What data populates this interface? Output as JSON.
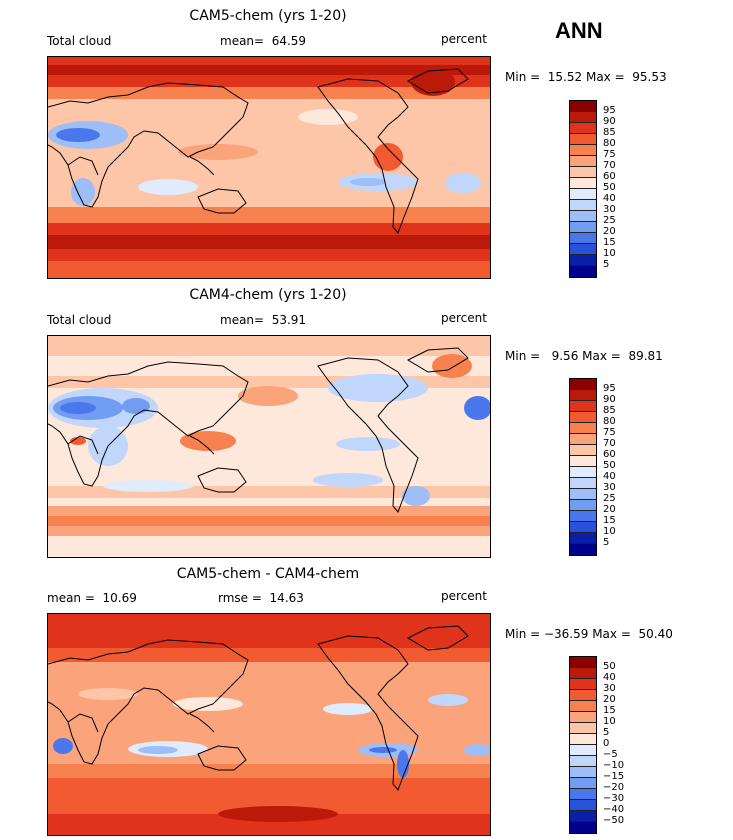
{
  "season": "ANN",
  "panels": [
    {
      "title": "CAM5-chem (yrs 1-20)",
      "left_label": "Total cloud",
      "mid_label": "mean=  64.59",
      "right_label": "percent",
      "minmax": "Min =  15.52 Max =  95.53",
      "colorbar": {
        "labels": [
          "95",
          "90",
          "85",
          "80",
          "75",
          "70",
          "60",
          "50",
          "40",
          "30",
          "25",
          "20",
          "15",
          "10",
          "5"
        ],
        "colors": [
          "#8b0000",
          "#bb1a0a",
          "#e0331b",
          "#f25a32",
          "#f7814f",
          "#fba37a",
          "#fdc6a8",
          "#fee8dc",
          "#e0ecfb",
          "#c0d6fa",
          "#9dbef7",
          "#719df2",
          "#4a77ec",
          "#2852d9",
          "#0a1fa8",
          "#00008b"
        ]
      }
    },
    {
      "title": "CAM4-chem (yrs 1-20)",
      "left_label": "Total cloud",
      "mid_label": "mean=  53.91",
      "right_label": "percent",
      "minmax": "Min =   9.56 Max =  89.81",
      "colorbar": {
        "labels": [
          "95",
          "90",
          "85",
          "80",
          "75",
          "70",
          "60",
          "50",
          "40",
          "30",
          "25",
          "20",
          "15",
          "10",
          "5"
        ],
        "colors": [
          "#8b0000",
          "#bb1a0a",
          "#e0331b",
          "#f25a32",
          "#f7814f",
          "#fba37a",
          "#fdc6a8",
          "#fee8dc",
          "#e0ecfb",
          "#c0d6fa",
          "#9dbef7",
          "#719df2",
          "#4a77ec",
          "#2852d9",
          "#0a1fa8",
          "#00008b"
        ]
      }
    },
    {
      "title": "CAM5-chem - CAM4-chem",
      "left_label": "mean =  10.69",
      "mid_label": "rmse =  14.63",
      "right_label": "percent",
      "minmax": "Min = −36.59 Max =  50.40",
      "colorbar": {
        "labels": [
          "50",
          "40",
          "30",
          "20",
          "15",
          "10",
          "5",
          "0",
          "−5",
          "−10",
          "−15",
          "−20",
          "−30",
          "−40",
          "−50"
        ],
        "colors": [
          "#8b0000",
          "#bb1a0a",
          "#e0331b",
          "#f25a32",
          "#f7814f",
          "#fba37a",
          "#fdc6a8",
          "#fee8dc",
          "#e0ecfb",
          "#c0d6fa",
          "#9dbef7",
          "#719df2",
          "#4a77ec",
          "#2852d9",
          "#0a1fa8",
          "#00008b"
        ]
      }
    }
  ]
}
